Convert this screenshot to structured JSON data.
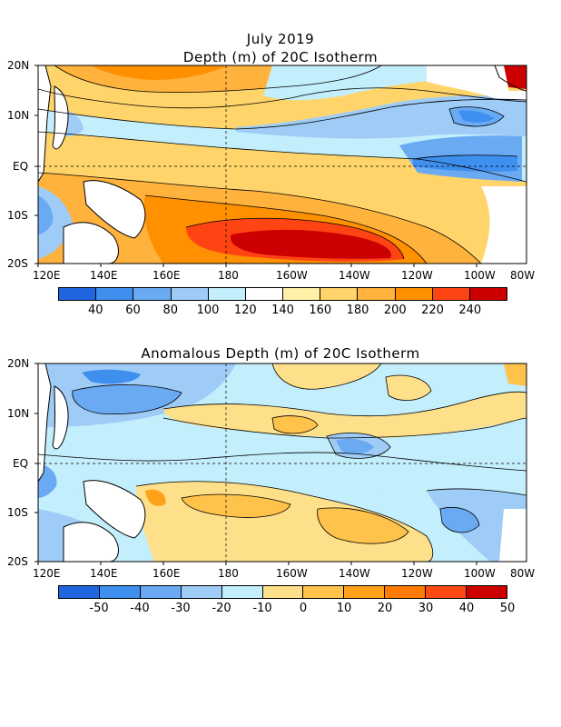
{
  "top_map": {
    "title_line1": "July 2019",
    "title_line2": "Depth (m) of 20C Isotherm",
    "lat_labels": [
      "20N",
      "10N",
      "EQ",
      "10S",
      "20S"
    ],
    "lon_labels": [
      "120E",
      "140E",
      "160E",
      "180",
      "160W",
      "140W",
      "120W",
      "100W",
      "80W"
    ],
    "colorbar": {
      "colors": [
        "#1f66e0",
        "#3f8fee",
        "#6aaaf2",
        "#9fccf7",
        "#c3eefb",
        "#ffffff",
        "#fff1a8",
        "#ffd56b",
        "#ffb23c",
        "#ff9000",
        "#ff4413",
        "#cc0000"
      ],
      "labels": [
        "40",
        "60",
        "80",
        "100",
        "120",
        "140",
        "160",
        "180",
        "200",
        "220",
        "240"
      ]
    }
  },
  "bottom_map": {
    "title": "Anomalous Depth (m) of 20C Isotherm",
    "lat_labels": [
      "20N",
      "10N",
      "EQ",
      "10S",
      "20S"
    ],
    "lon_labels": [
      "120E",
      "140E",
      "160E",
      "180",
      "160W",
      "140W",
      "120W",
      "100W",
      "80W"
    ],
    "colorbar": {
      "colors": [
        "#1f66e0",
        "#3f8fee",
        "#6aaaf2",
        "#9fccf7",
        "#c3eefb",
        "#ffe08a",
        "#ffc24a",
        "#ffa21a",
        "#ff7a00",
        "#ff4a13",
        "#cc0000"
      ],
      "labels": [
        "-50",
        "-40",
        "-30",
        "-20",
        "-10",
        "0",
        "10",
        "20",
        "30",
        "40",
        "50"
      ]
    }
  }
}
